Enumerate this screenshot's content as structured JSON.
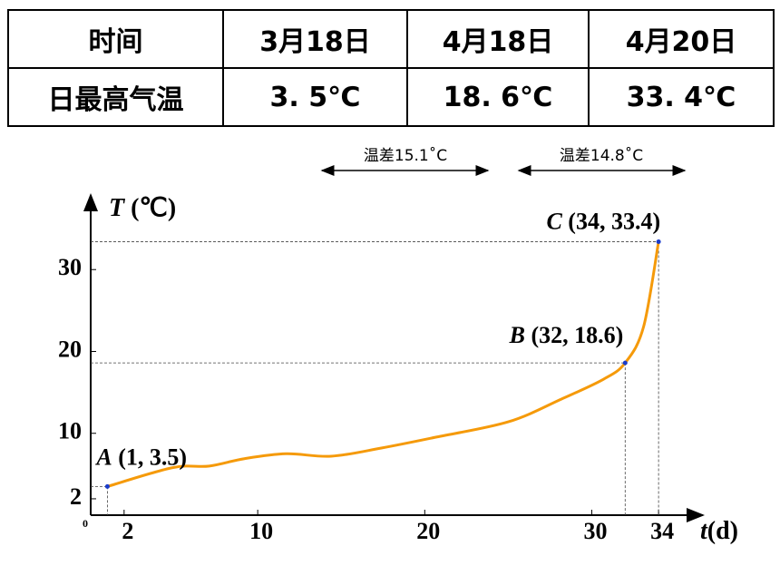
{
  "table": {
    "rows": [
      [
        "时间",
        "3月18日",
        "4月18日",
        "4月20日"
      ],
      [
        "日最高气温",
        "3. 5℃",
        "18. 6℃",
        "33. 4℃"
      ]
    ]
  },
  "annotations": [
    "温差15.1˚C",
    "温差14.8˚C"
  ],
  "chart_data": {
    "type": "line",
    "y_axis_symbol": "T",
    "y_axis_unit": "(℃)",
    "x_axis_symbol": "t",
    "x_axis_unit": "(d)",
    "xlim": [
      0,
      36.6
    ],
    "ylim": [
      0,
      39
    ],
    "xticks": [
      0,
      2,
      10,
      20,
      30,
      34
    ],
    "yticks": [
      2,
      10,
      20,
      30
    ],
    "series": [
      {
        "color": "#f59a0a",
        "x": [
          1,
          4.9,
          7.1,
          9.2,
          11.7,
          14.4,
          17.4,
          20.6,
          25,
          28.2,
          30.7,
          32,
          33.1,
          34
        ],
        "values": [
          3.5,
          5.8,
          6.0,
          6.9,
          7.5,
          7.2,
          8.2,
          9.5,
          11.4,
          14.2,
          16.6,
          18.6,
          23,
          33.4
        ]
      }
    ],
    "points": [
      {
        "name": "A",
        "label": "(1, 3.5)",
        "x": 1,
        "y": 3.5
      },
      {
        "name": "B",
        "label": "(32, 18.6)",
        "x": 32,
        "y": 18.6
      },
      {
        "name": "C",
        "label": "(34, 33.4)",
        "x": 34,
        "y": 33.4
      }
    ]
  }
}
